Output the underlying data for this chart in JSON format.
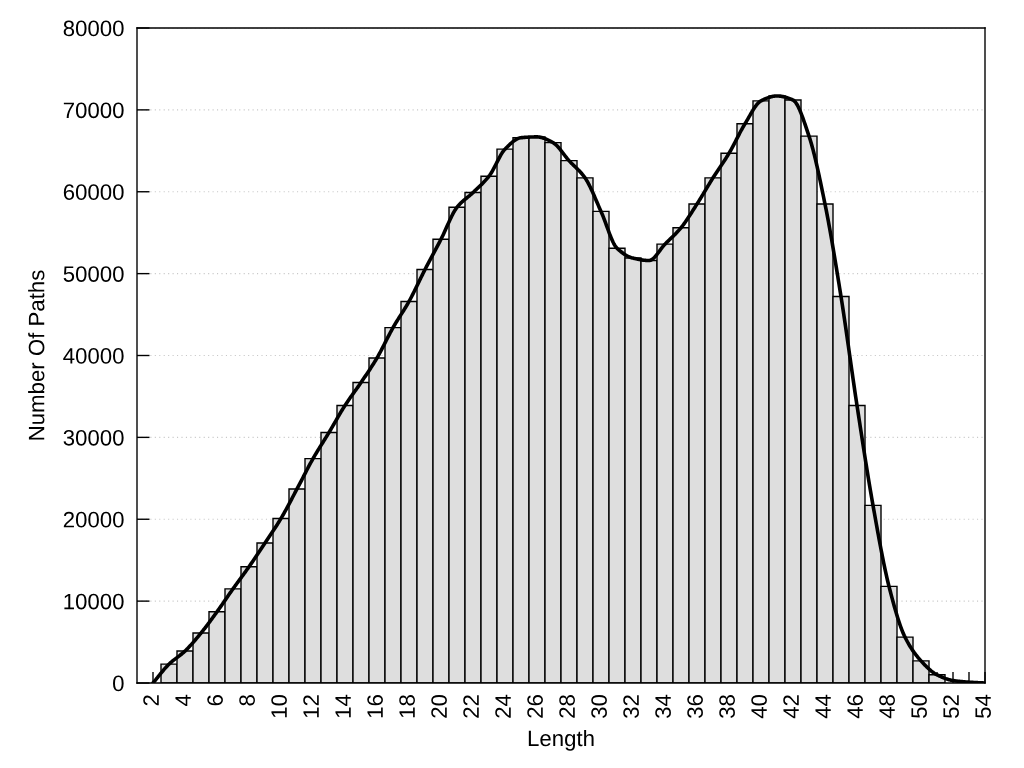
{
  "chart_data": {
    "type": "bar",
    "xlabel": "Length",
    "ylabel": "Number Of Paths",
    "xlim": [
      1,
      54
    ],
    "xticks": [
      2,
      {
        "value": 3,
        "label": null
      },
      4,
      {
        "value": 5,
        "label": null
      },
      6,
      {
        "value": 7,
        "label": null
      },
      8,
      {
        "value": 9,
        "label": null
      },
      10,
      {
        "value": 11,
        "label": null
      },
      12,
      {
        "value": 13,
        "label": null
      },
      14,
      {
        "value": 15,
        "label": null
      },
      16,
      {
        "value": 17,
        "label": null
      },
      18,
      {
        "value": 19,
        "label": null
      },
      20,
      {
        "value": 21,
        "label": null
      },
      22,
      {
        "value": 23,
        "label": null
      },
      24,
      {
        "value": 25,
        "label": null
      },
      26,
      {
        "value": 27,
        "label": null
      },
      28,
      {
        "value": 29,
        "label": null
      },
      30,
      {
        "value": 31,
        "label": null
      },
      32,
      {
        "value": 33,
        "label": null
      },
      34,
      {
        "value": 35,
        "label": null
      },
      36,
      {
        "value": 37,
        "label": null
      },
      38,
      {
        "value": 39,
        "label": null
      },
      40,
      {
        "value": 41,
        "label": null
      },
      42,
      {
        "value": 43,
        "label": null
      },
      44,
      {
        "value": 45,
        "label": null
      },
      46,
      {
        "value": 47,
        "label": null
      },
      48,
      {
        "value": 49,
        "label": null
      },
      50,
      {
        "value": 51,
        "label": null
      },
      52,
      {
        "value": 53,
        "label": null
      },
      54
    ],
    "ylim": [
      0,
      80000
    ],
    "yticks": [
      0,
      10000,
      20000,
      30000,
      40000,
      50000,
      60000,
      70000,
      80000
    ],
    "grid": "y",
    "series": [
      {
        "color": "#dedede",
        "x": [
          3,
          4,
          5,
          6,
          7,
          8,
          9,
          10,
          11,
          12,
          13,
          14,
          15,
          16,
          17,
          18,
          19,
          20,
          21,
          22,
          23,
          24,
          25,
          26,
          27,
          28,
          29,
          30,
          31,
          32,
          33,
          34,
          35,
          36,
          37,
          38,
          39,
          40,
          41,
          42,
          43,
          44,
          45,
          46,
          47,
          48,
          49,
          50,
          51
        ],
        "values": [
          2300,
          3900,
          6100,
          8700,
          11500,
          14200,
          17100,
          20100,
          23700,
          27400,
          30600,
          33900,
          36700,
          39700,
          43400,
          46600,
          50500,
          54200,
          58100,
          59900,
          61900,
          65200,
          66600,
          66700,
          66000,
          63800,
          61700,
          57600,
          53100,
          51900,
          51600,
          53600,
          55600,
          58500,
          61700,
          64700,
          68300,
          71100,
          71700,
          71200,
          66800,
          58500,
          47200,
          33900,
          21700,
          11800,
          5600,
          2700,
          1000
        ]
      },
      {
        "type": "line",
        "color": "#000000",
        "x": [
          2,
          3,
          4,
          5,
          6,
          7,
          8,
          9,
          10,
          11,
          12,
          13,
          14,
          15,
          16,
          17,
          18,
          19,
          20,
          21,
          22,
          23,
          24,
          25,
          26,
          27,
          28,
          29,
          30,
          31,
          32,
          33,
          34,
          35,
          36,
          37,
          38,
          39,
          40,
          41,
          42,
          43,
          44,
          45,
          46,
          47,
          48,
          49,
          50,
          51,
          52,
          53,
          54
        ],
        "values": [
          0,
          2300,
          3900,
          6100,
          8700,
          11500,
          14200,
          17100,
          20100,
          23700,
          27400,
          30600,
          33900,
          36700,
          39700,
          43400,
          46600,
          50500,
          54200,
          58100,
          59900,
          61900,
          65200,
          66600,
          66700,
          66000,
          63800,
          61700,
          57600,
          53100,
          51900,
          51600,
          53600,
          55600,
          58500,
          61700,
          64700,
          68300,
          71100,
          71700,
          71200,
          66800,
          58500,
          47200,
          33900,
          21700,
          11800,
          5600,
          2700,
          1000,
          300,
          100,
          0
        ]
      }
    ]
  }
}
